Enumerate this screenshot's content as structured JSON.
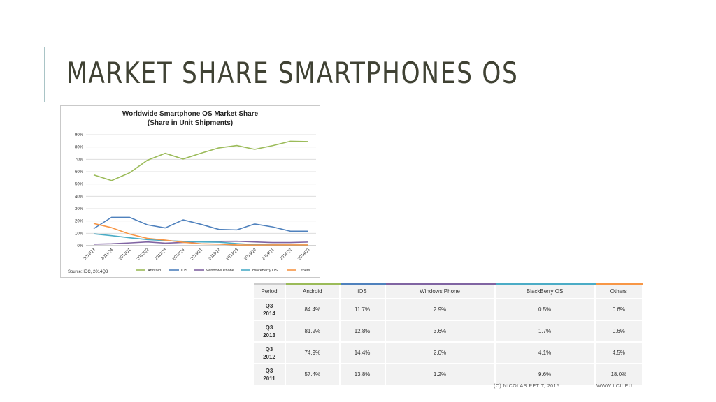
{
  "slide": {
    "title": "MARKET SHARE SMARTPHONES OS",
    "footer_left": "(C) NICOLAS PETIT, 2015",
    "footer_right": "WWW.LCII.EU"
  },
  "colors": {
    "android": "#9bbb59",
    "ios": "#4f81bd",
    "windows": "#8064a2",
    "blackberry": "#4bacc6",
    "others": "#f79646"
  },
  "chart_data": {
    "type": "line",
    "title": "Worldwide Smartphone OS Market Share",
    "subtitle": "(Share in Unit Shipments)",
    "source": "Source: IDC, 2014Q3",
    "categories": [
      "2011Q3",
      "2011Q4",
      "2012Q1",
      "2012Q2",
      "2012Q3",
      "2012Q4",
      "2013Q1",
      "2013Q2",
      "2013Q3",
      "2013Q4",
      "2014Q1",
      "2014Q2",
      "2014Q3"
    ],
    "ylim": [
      0,
      90
    ],
    "yticks": [
      "0%",
      "10%",
      "20%",
      "30%",
      "40%",
      "50%",
      "60%",
      "70%",
      "80%",
      "90%"
    ],
    "legend_position": "bottom",
    "grid": true,
    "series": [
      {
        "name": "Android",
        "color": "#9bbb59",
        "values": [
          57.4,
          52.8,
          59.0,
          69.3,
          74.9,
          70.3,
          75.0,
          79.3,
          81.2,
          78.1,
          81.1,
          84.7,
          84.4
        ]
      },
      {
        "name": "iOS",
        "color": "#4f81bd",
        "values": [
          13.8,
          23.0,
          23.0,
          16.9,
          14.4,
          20.9,
          17.3,
          13.2,
          12.8,
          17.6,
          15.2,
          11.7,
          11.7
        ]
      },
      {
        "name": "Windows Phone",
        "color": "#8064a2",
        "values": [
          1.2,
          1.5,
          2.2,
          3.0,
          2.0,
          2.6,
          3.2,
          3.5,
          3.6,
          3.0,
          2.5,
          2.5,
          2.9
        ]
      },
      {
        "name": "BlackBerry OS",
        "color": "#4bacc6",
        "values": [
          9.6,
          8.1,
          6.4,
          4.9,
          4.1,
          3.5,
          3.0,
          2.8,
          1.7,
          0.8,
          0.6,
          0.5,
          0.5
        ]
      },
      {
        "name": "Others",
        "color": "#f79646",
        "values": [
          18.0,
          14.6,
          9.4,
          5.9,
          4.5,
          2.7,
          1.5,
          1.2,
          0.6,
          0.5,
          0.6,
          0.6,
          0.6
        ]
      }
    ]
  },
  "table": {
    "headers": [
      "Period",
      "Android",
      "iOS",
      "Windows Phone",
      "BlackBerry OS",
      "Others"
    ],
    "header_colors": [
      "#cccccc",
      "#9bbb59",
      "#4f81bd",
      "#8064a2",
      "#4bacc6",
      "#f79646"
    ],
    "rows": [
      {
        "period_q": "Q3",
        "period_y": "2014",
        "values": [
          "84.4%",
          "11.7%",
          "2.9%",
          "0.5%",
          "0.6%"
        ]
      },
      {
        "period_q": "Q3",
        "period_y": "2013",
        "values": [
          "81.2%",
          "12.8%",
          "3.6%",
          "1.7%",
          "0.6%"
        ]
      },
      {
        "period_q": "Q3",
        "period_y": "2012",
        "values": [
          "74.9%",
          "14.4%",
          "2.0%",
          "4.1%",
          "4.5%"
        ]
      },
      {
        "period_q": "Q3",
        "period_y": "2011",
        "values": [
          "57.4%",
          "13.8%",
          "1.2%",
          "9.6%",
          "18.0%"
        ]
      }
    ]
  }
}
